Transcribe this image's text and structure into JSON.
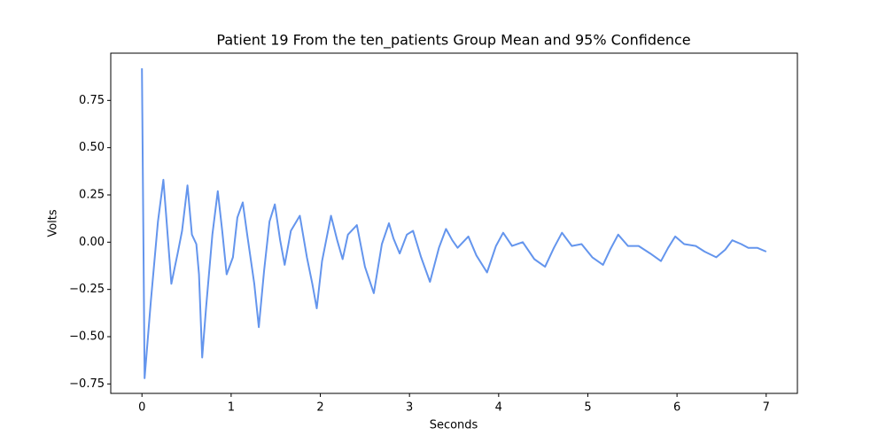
{
  "chart_data": {
    "type": "line",
    "title": "Patient 19 From the ten_patients Group Mean and 95% Confidence",
    "x_label": "Seconds",
    "y_label": "Volts",
    "color": "#6495ed",
    "grid": false,
    "x": [
      0,
      0.03,
      0.1,
      0.18,
      0.24,
      0.27,
      0.33,
      0.4,
      0.45,
      0.51,
      0.56,
      0.61,
      0.64,
      0.675,
      0.72,
      0.79,
      0.85,
      0.9,
      0.95,
      1.02,
      1.07,
      1.13,
      1.18,
      1.26,
      1.31,
      1.37,
      1.43,
      1.49,
      1.55,
      1.6,
      1.67,
      1.77,
      1.85,
      1.91,
      1.96,
      2.02,
      2.12,
      2.19,
      2.25,
      2.31,
      2.41,
      2.5,
      2.6,
      2.69,
      2.77,
      2.82,
      2.89,
      2.97,
      3.04,
      3.13,
      3.23,
      3.33,
      3.41,
      3.48,
      3.54,
      3.66,
      3.75,
      3.87,
      3.97,
      4.05,
      4.15,
      4.27,
      4.4,
      4.52,
      4.62,
      4.71,
      4.82,
      4.93,
      5.05,
      5.17,
      5.25,
      5.34,
      5.45,
      5.57,
      5.7,
      5.82,
      5.9,
      5.98,
      6.08,
      6.21,
      6.31,
      6.44,
      6.54,
      6.62,
      6.72,
      6.8,
      6.9,
      7.0
    ],
    "values": [
      0.92,
      -0.72,
      -0.31,
      0.11,
      0.33,
      0.15,
      -0.22,
      -0.06,
      0.06,
      0.3,
      0.04,
      -0.01,
      -0.17,
      -0.61,
      -0.34,
      0.04,
      0.27,
      0.06,
      -0.17,
      -0.08,
      0.13,
      0.21,
      0.04,
      -0.22,
      -0.45,
      -0.15,
      0.11,
      0.2,
      0.01,
      -0.12,
      0.06,
      0.14,
      -0.08,
      -0.22,
      -0.35,
      -0.1,
      0.14,
      0.01,
      -0.09,
      0.04,
      0.09,
      -0.13,
      -0.27,
      -0.01,
      0.1,
      0.02,
      -0.06,
      0.04,
      0.06,
      -0.08,
      -0.21,
      -0.03,
      0.07,
      0.01,
      -0.03,
      0.03,
      -0.07,
      -0.16,
      -0.02,
      0.05,
      -0.02,
      0.0,
      -0.09,
      -0.13,
      -0.03,
      0.05,
      -0.02,
      -0.01,
      -0.08,
      -0.12,
      -0.04,
      0.04,
      -0.02,
      -0.02,
      -0.06,
      -0.1,
      -0.03,
      0.03,
      -0.01,
      -0.02,
      -0.05,
      -0.08,
      -0.04,
      0.01,
      -0.01,
      -0.03,
      -0.03,
      -0.05
    ],
    "xlim": [
      -0.35,
      7.35
    ],
    "xticks": [
      0,
      1,
      2,
      3,
      4,
      5,
      6,
      7
    ],
    "ylim": [
      -0.8,
      1.0
    ],
    "yticks": [
      {
        "value": -0.75,
        "label": "−0.75"
      },
      {
        "value": -0.5,
        "label": "−0.50"
      },
      {
        "value": -0.25,
        "label": "−0.25"
      },
      {
        "value": 0,
        "label": "0.00"
      },
      {
        "value": 0.25,
        "label": "0.25"
      },
      {
        "value": 0.5,
        "label": "0.50"
      },
      {
        "value": 0.75,
        "label": "0.75"
      }
    ]
  }
}
